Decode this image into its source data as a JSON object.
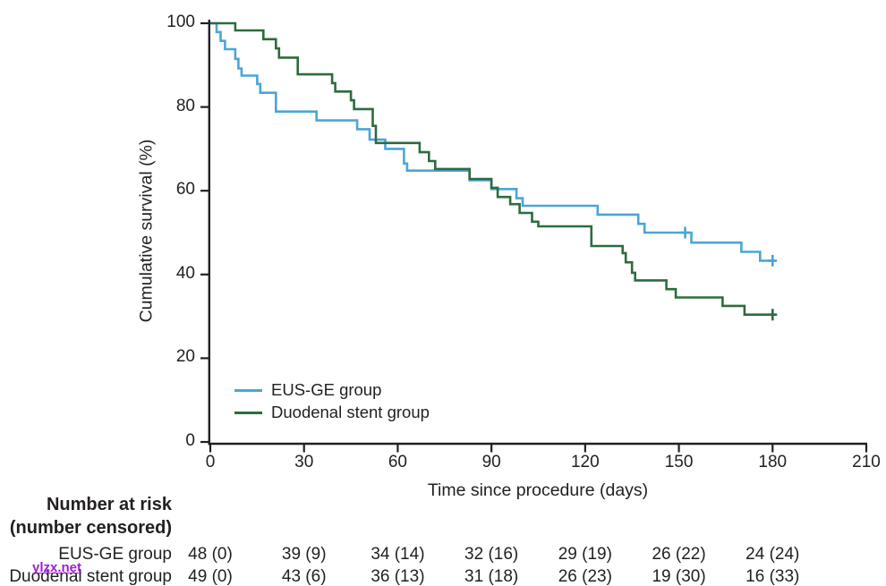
{
  "figure": {
    "bg": "#ffffff",
    "text_color": "#231f20",
    "axis_color": "#231f20"
  },
  "chart_data": {
    "type": "line",
    "subtype": "kaplan-meier-step",
    "title": "",
    "xlabel": "Time since procedure (days)",
    "ylabel": "Cumulative survival (%)",
    "xlim": [
      0,
      210
    ],
    "ylim": [
      0,
      100
    ],
    "xticks": [
      0,
      30,
      60,
      90,
      120,
      150,
      180,
      210
    ],
    "yticks": [
      0,
      20,
      40,
      60,
      80,
      100
    ],
    "grid": false,
    "legend_position": "inside-lower-left",
    "series": [
      {
        "name": "EUS-GE group",
        "color": "#4ba5d7",
        "steps": [
          [
            0,
            100
          ],
          [
            2,
            97.9
          ],
          [
            3.3,
            95.8
          ],
          [
            4.7,
            93.8
          ],
          [
            8,
            91.5
          ],
          [
            9,
            89.2
          ],
          [
            10,
            87.5
          ],
          [
            15,
            85.5
          ],
          [
            16,
            83.4
          ],
          [
            21,
            78.9
          ],
          [
            34,
            76.8
          ],
          [
            47,
            74.7
          ],
          [
            51,
            72.2
          ],
          [
            56,
            70.0
          ],
          [
            62,
            66.5
          ],
          [
            63,
            64.8
          ],
          [
            83,
            62.5
          ],
          [
            90,
            60.4
          ],
          [
            98,
            58.2
          ],
          [
            100,
            56.4
          ],
          [
            124,
            54.3
          ],
          [
            137,
            52.1
          ],
          [
            139,
            50.0
          ],
          [
            154,
            47.6
          ],
          [
            170,
            45.4
          ],
          [
            176,
            43.3
          ],
          [
            181,
            43.3
          ]
        ],
        "censor_marks": [
          [
            152,
            50.0
          ],
          [
            180,
            43.3
          ]
        ]
      },
      {
        "name": "Duodenal stent group",
        "color": "#2e6b3f",
        "steps": [
          [
            0,
            100
          ],
          [
            8,
            98.3
          ],
          [
            17,
            96.2
          ],
          [
            21,
            94.0
          ],
          [
            22,
            91.8
          ],
          [
            28,
            87.8
          ],
          [
            39,
            85.7
          ],
          [
            40,
            83.7
          ],
          [
            45,
            81.6
          ],
          [
            46,
            79.5
          ],
          [
            52,
            75.5
          ],
          [
            53,
            71.4
          ],
          [
            67,
            69.2
          ],
          [
            70,
            67.1
          ],
          [
            72,
            65.2
          ],
          [
            83,
            62.8
          ],
          [
            90,
            60.7
          ],
          [
            92,
            58.5
          ],
          [
            96,
            56.8
          ],
          [
            99,
            54.7
          ],
          [
            103,
            52.6
          ],
          [
            105,
            51.5
          ],
          [
            122,
            46.8
          ],
          [
            132,
            45.1
          ],
          [
            133,
            42.9
          ],
          [
            135,
            40.4
          ],
          [
            136,
            38.6
          ],
          [
            146,
            36.5
          ],
          [
            149,
            34.5
          ],
          [
            164,
            32.5
          ],
          [
            171,
            30.4
          ],
          [
            181,
            30.4
          ]
        ],
        "censor_marks": [
          [
            180,
            30.4
          ]
        ]
      }
    ]
  },
  "risk_table": {
    "title_line1": "Number at risk",
    "title_line2": "(number censored)",
    "columns_days": [
      0,
      30,
      60,
      90,
      120,
      150,
      180
    ],
    "rows": [
      {
        "label": "EUS-GE group",
        "values": [
          "48 (0)",
          "39 (9)",
          "34 (14)",
          "32 (16)",
          "29 (19)",
          "26 (22)",
          "24 (24)"
        ]
      },
      {
        "label": "Duodenal stent group",
        "values": [
          "49 (0)",
          "43 (6)",
          "36 (13)",
          "31 (18)",
          "26 (23)",
          "19 (30)",
          "16 (33)"
        ]
      }
    ]
  },
  "watermark": {
    "text": "ylzx.net",
    "color": "#a21fd0"
  }
}
